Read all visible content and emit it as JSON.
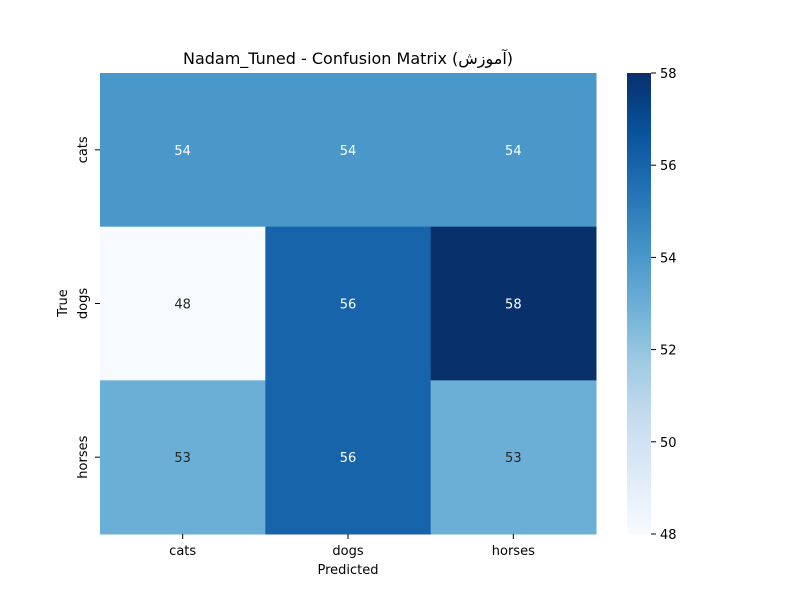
{
  "chart_data": {
    "type": "heatmap",
    "title": "Nadam_Tuned - Confusion Matrix (آموزش)",
    "xlabel": "Predicted",
    "ylabel": "True",
    "x_categories": [
      "cats",
      "dogs",
      "horses"
    ],
    "y_categories": [
      "cats",
      "dogs",
      "horses"
    ],
    "values": [
      [
        54,
        54,
        54
      ],
      [
        48,
        56,
        58
      ],
      [
        53,
        56,
        53
      ]
    ],
    "colorbar": {
      "min": 48,
      "max": 58,
      "ticks": [
        48,
        50,
        52,
        54,
        56,
        58
      ]
    },
    "colormap": "Blues"
  }
}
